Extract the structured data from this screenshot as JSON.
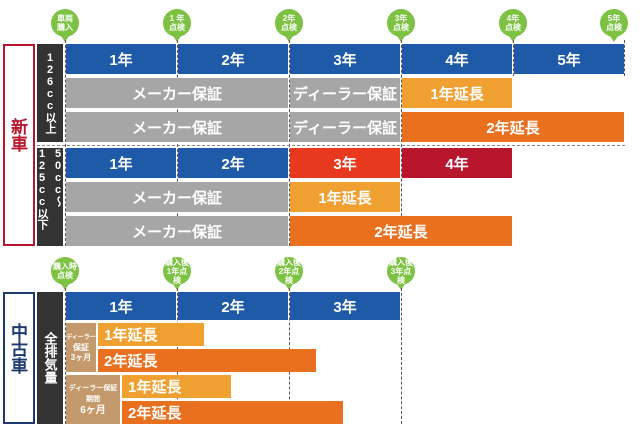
{
  "new_car": {
    "label": "新車",
    "milestones": [
      {
        "line1": "車両",
        "line2": "購入"
      },
      {
        "line1": "1 年",
        "line2": "点検"
      },
      {
        "line1": "2年",
        "line2": "点検"
      },
      {
        "line1": "3年",
        "line2": "点検"
      },
      {
        "line1": "4年",
        "line2": "点検"
      },
      {
        "line1": "5年",
        "line2": "点検"
      }
    ],
    "group_126": {
      "label": "126cc以上",
      "years": [
        "1年",
        "2年",
        "3年",
        "4年",
        "5年"
      ],
      "row1": {
        "maker": "メーカー保証",
        "dealer": "ディーラー保証",
        "ext": "1年延長"
      },
      "row2": {
        "maker": "メーカー保証",
        "dealer": "ディーラー保証",
        "ext": "2年延長"
      }
    },
    "group_50": {
      "label": "50cc〜125cc以下",
      "years": [
        "1年",
        "2年",
        "3年",
        "4年"
      ],
      "row1": {
        "maker": "メーカー保証",
        "ext": "1年延長"
      },
      "row2": {
        "maker": "メーカー保証",
        "ext": "2年延長"
      }
    }
  },
  "used_car": {
    "label": "中古車",
    "side_label": "全排気量",
    "milestones": [
      {
        "line1": "購入時",
        "line2": "点検"
      },
      {
        "line1": "購入後",
        "line2": "1年点検"
      },
      {
        "line1": "購入後",
        "line2": "2年点検"
      },
      {
        "line1": "購入後",
        "line2": "3年点検"
      }
    ],
    "years": [
      "1年",
      "2年",
      "3年"
    ],
    "group_3m": {
      "label_line1": "ディーラー",
      "label_line2": "保証",
      "label_line3": "3ヶ月",
      "ext1": "1年延長",
      "ext2": "2年延長"
    },
    "group_6m": {
      "label_line1": "ディーラー保証期間",
      "label_line2": "6ヶ月",
      "ext1": "1年延長",
      "ext2": "2年延長"
    }
  },
  "colors": {
    "blue": "#1e5aa8",
    "gray": "#a6a6a6",
    "yellow": "#f0a030",
    "orange": "#e8701e",
    "red": "#e8391e",
    "darkred": "#b8162c",
    "green": "#7dc242",
    "new_frame": "#b8162c",
    "used_frame": "#1e3a6e"
  }
}
